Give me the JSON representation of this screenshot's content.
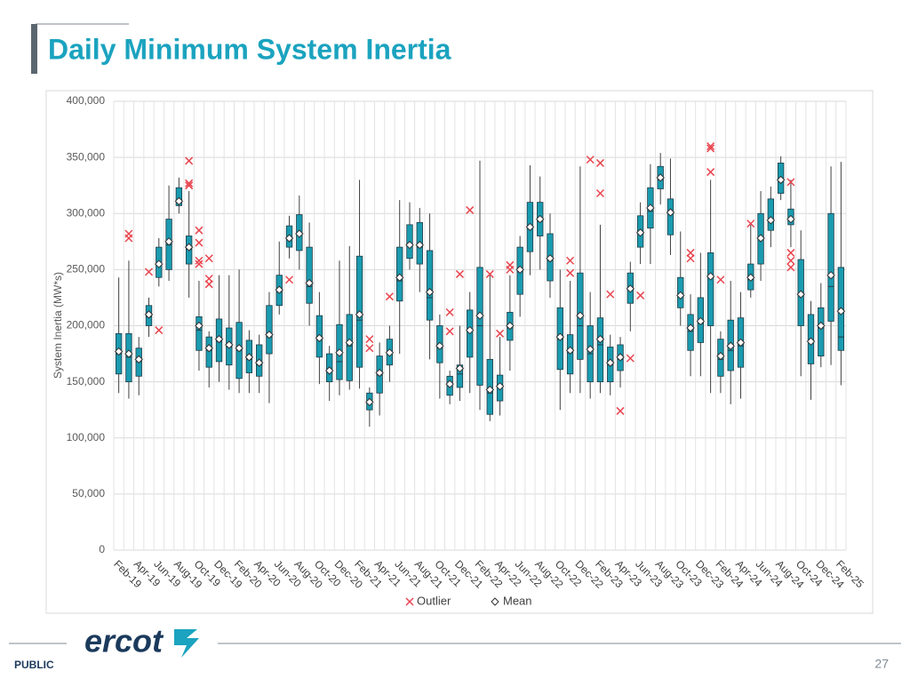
{
  "slide": {
    "title": "Daily Minimum System Inertia",
    "logo": "ercot",
    "footer_label": "PUBLIC",
    "page_number": "27"
  },
  "chart_data": {
    "type": "box",
    "y_label": "System Inertia (MW*s)",
    "categories": [
      "Feb-19",
      null,
      "Apr-19",
      null,
      "Jun-19",
      null,
      "Aug-19",
      null,
      "Oct-19",
      null,
      "Dec-19",
      null,
      "Feb-20",
      null,
      "Apr-20",
      null,
      "Jun-20",
      null,
      "Aug-20",
      null,
      "Oct-20",
      null,
      "Dec-20",
      null,
      "Feb-21",
      null,
      "Apr-21",
      null,
      "Jun-21",
      null,
      "Aug-21",
      null,
      "Oct-21",
      null,
      "Dec-21",
      null,
      "Feb-22",
      null,
      "Apr-22",
      null,
      "Jun-22",
      null,
      "Aug-22",
      null,
      "Oct-22",
      null,
      "Dec-22",
      null,
      "Feb-23",
      null,
      "Apr-23",
      null,
      "Jun-23",
      null,
      "Aug-23",
      null,
      "Oct-23",
      null,
      "Dec-23",
      null,
      "Feb-24",
      null,
      "Apr-24",
      null,
      "Jun-24",
      null,
      "Aug-24",
      null,
      "Oct-24",
      null,
      "Dec-24",
      null,
      "Feb-25"
    ],
    "whisker_low": [
      140000,
      135000,
      138000,
      190000,
      235000,
      240000,
      300000,
      225000,
      160000,
      145000,
      150000,
      143000,
      140000,
      140000,
      140000,
      131000,
      210000,
      260000,
      250000,
      200000,
      148000,
      133000,
      138000,
      143000,
      144000,
      110000,
      120000,
      150000,
      175000,
      250000,
      230000,
      170000,
      135000,
      130000,
      133000,
      140000,
      125000,
      115000,
      120000,
      160000,
      208000,
      245000,
      250000,
      225000,
      125000,
      140000,
      140000,
      135000,
      140000,
      138000,
      145000,
      195000,
      255000,
      255000,
      308000,
      263000,
      200000,
      155000,
      155000,
      140000,
      140000,
      130000,
      135000,
      225000,
      240000,
      270000,
      312000,
      270000,
      155000,
      134000,
      163000,
      165000,
      147000
    ],
    "q1": [
      157000,
      150000,
      155000,
      200000,
      243000,
      250000,
      307000,
      255000,
      178000,
      163000,
      168000,
      165000,
      153000,
      158000,
      155000,
      175000,
      218000,
      270000,
      267000,
      220000,
      172000,
      150000,
      152000,
      151000,
      163000,
      125000,
      140000,
      165000,
      222000,
      260000,
      255000,
      205000,
      167000,
      138000,
      145000,
      172000,
      147000,
      121000,
      133000,
      187000,
      228000,
      266000,
      280000,
      240000,
      161000,
      157000,
      170000,
      150000,
      150000,
      150000,
      160000,
      220000,
      270000,
      287000,
      322000,
      281000,
      216000,
      178000,
      185000,
      200000,
      155000,
      160000,
      163000,
      232000,
      255000,
      285000,
      318000,
      290000,
      200000,
      166000,
      173000,
      204000,
      178000
    ],
    "median": [
      175000,
      172000,
      168000,
      208000,
      255000,
      272000,
      312000,
      268000,
      196000,
      178000,
      186000,
      181000,
      178000,
      170000,
      165000,
      190000,
      230000,
      278000,
      282000,
      235000,
      188000,
      159000,
      168000,
      182000,
      205000,
      132000,
      156000,
      175000,
      240000,
      272000,
      270000,
      225000,
      180000,
      147000,
      157000,
      195000,
      200000,
      140000,
      145000,
      198000,
      248000,
      288000,
      293000,
      258000,
      188000,
      176000,
      200000,
      175000,
      183000,
      165000,
      170000,
      233000,
      282000,
      302000,
      330000,
      300000,
      226000,
      195000,
      202000,
      245000,
      170000,
      178000,
      182000,
      241000,
      278000,
      295000,
      330000,
      295000,
      228000,
      185000,
      198000,
      235000,
      190000
    ],
    "q3": [
      193000,
      193000,
      180000,
      218000,
      270000,
      295000,
      323000,
      280000,
      208000,
      190000,
      206000,
      198000,
      203000,
      187000,
      183000,
      218000,
      245000,
      289000,
      299000,
      270000,
      209000,
      175000,
      201000,
      210000,
      262000,
      140000,
      173000,
      188000,
      270000,
      290000,
      292000,
      267000,
      200000,
      155000,
      165000,
      214000,
      252000,
      170000,
      156000,
      212000,
      270000,
      310000,
      310000,
      282000,
      216000,
      192000,
      247000,
      200000,
      207000,
      181000,
      183000,
      247000,
      298000,
      323000,
      342000,
      313000,
      243000,
      210000,
      225000,
      265000,
      188000,
      205000,
      207000,
      255000,
      300000,
      313000,
      345000,
      304000,
      259000,
      210000,
      216000,
      300000,
      252000
    ],
    "whisker_high": [
      243000,
      258000,
      190000,
      225000,
      278000,
      325000,
      332000,
      320000,
      240000,
      195000,
      245000,
      245000,
      250000,
      196000,
      192000,
      230000,
      275000,
      298000,
      316000,
      292000,
      230000,
      182000,
      258000,
      271000,
      330000,
      145000,
      185000,
      200000,
      312000,
      310000,
      305000,
      300000,
      210000,
      160000,
      200000,
      230000,
      347000,
      245000,
      190000,
      245000,
      280000,
      343000,
      333000,
      300000,
      250000,
      240000,
      342000,
      230000,
      290000,
      192000,
      190000,
      257000,
      310000,
      344000,
      354000,
      349000,
      284000,
      228000,
      265000,
      330000,
      195000,
      240000,
      230000,
      290000,
      320000,
      324000,
      351000,
      330000,
      285000,
      222000,
      238000,
      342000,
      346000
    ],
    "mean": [
      177000,
      175000,
      170000,
      210000,
      255000,
      275000,
      311000,
      270000,
      200000,
      180000,
      188000,
      183000,
      180000,
      172000,
      167000,
      192000,
      232000,
      278000,
      282000,
      238000,
      189000,
      160000,
      176000,
      185000,
      210000,
      132000,
      158000,
      176000,
      243000,
      272000,
      272000,
      230000,
      182000,
      148000,
      162000,
      196000,
      209000,
      143000,
      146000,
      200000,
      250000,
      288000,
      295000,
      260000,
      190000,
      178000,
      209000,
      179000,
      188000,
      167000,
      172000,
      233000,
      283000,
      305000,
      332000,
      301000,
      227000,
      198000,
      204000,
      244000,
      173000,
      182000,
      185000,
      243000,
      278000,
      294000,
      330000,
      295000,
      228000,
      186000,
      200000,
      245000,
      213000
    ],
    "outliers": [
      [],
      [
        278000,
        282000
      ],
      [],
      [
        248000
      ],
      [
        196000
      ],
      [],
      [],
      [
        347000,
        327000,
        325000
      ],
      [
        285000,
        274000,
        258000,
        255000
      ],
      [
        260000,
        242000,
        237000
      ],
      [],
      [],
      [],
      [],
      [],
      [],
      [],
      [
        241000
      ],
      [],
      [],
      [],
      [],
      [],
      [],
      [],
      [
        188000,
        180000
      ],
      [],
      [
        226000
      ],
      [],
      [],
      [],
      [],
      [],
      [
        212000,
        195000
      ],
      [
        246000
      ],
      [
        303000
      ],
      [],
      [
        246000
      ],
      [
        193000
      ],
      [
        254000,
        250000
      ],
      [],
      [],
      [],
      [],
      [],
      [
        258000,
        247000
      ],
      [],
      [
        348000
      ],
      [
        345000,
        318000
      ],
      [
        228000
      ],
      [
        124000
      ],
      [
        171000
      ],
      [
        227000
      ],
      [],
      [],
      [],
      [],
      [
        265000,
        260000
      ],
      [],
      [
        360000,
        358000,
        337000
      ],
      [
        241000
      ],
      [],
      [],
      [
        291000
      ],
      [],
      [],
      [],
      [
        328000,
        265000,
        258000,
        252000
      ],
      [],
      [],
      [],
      [],
      []
    ],
    "box_color": "#1a9bb0",
    "outlier_color": "#e8454f",
    "legend": [
      "Outlier",
      "Mean"
    ],
    "ylim": [
      0,
      400000
    ],
    "yticks": [
      0,
      {
        "value": 50000,
        "label": "50,000"
      },
      {
        "value": 100000,
        "label": "100,000"
      },
      {
        "value": 150000,
        "label": "150,000"
      },
      {
        "value": 200000,
        "label": "200,000"
      },
      {
        "value": 250000,
        "label": "250,000"
      },
      {
        "value": 300000,
        "label": "300,000"
      },
      {
        "value": 350000,
        "label": "350,000"
      },
      {
        "value": 400000,
        "label": "400,000"
      }
    ],
    "grid": true
  }
}
